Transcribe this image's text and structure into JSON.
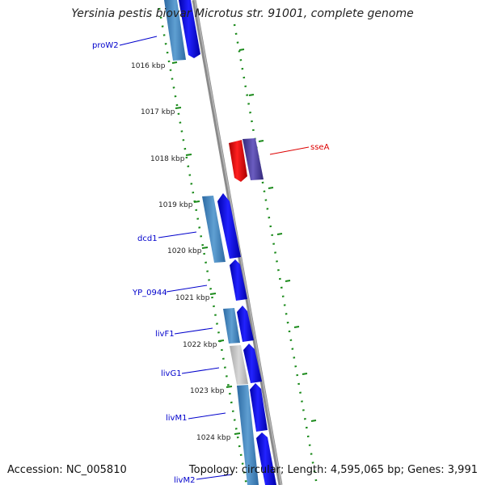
{
  "title": "Yersinia pestis biovar Microtus str. 91001, complete genome",
  "accession": "Accession: NC_005810",
  "summary": "Topology: circular; Length: 4,595,065 bp; Genes: 3,991",
  "kbp_ticks": [
    {
      "label": "1016 kbp",
      "position_kbp": 1016
    },
    {
      "label": "1017 kbp",
      "position_kbp": 1017
    },
    {
      "label": "1018 kbp",
      "position_kbp": 1018
    },
    {
      "label": "1019 kbp",
      "position_kbp": 1019
    },
    {
      "label": "1020 kbp",
      "position_kbp": 1020
    },
    {
      "label": "1021 kbp",
      "position_kbp": 1021
    },
    {
      "label": "1022 kbp",
      "position_kbp": 1022
    },
    {
      "label": "1023 kbp",
      "position_kbp": 1023
    },
    {
      "label": "1024 kbp",
      "position_kbp": 1024
    }
  ],
  "gene_labels": [
    {
      "name": "proW2",
      "side": "left",
      "color": "#0000cc"
    },
    {
      "name": "sseA",
      "side": "right",
      "color": "#dd0000"
    },
    {
      "name": "dcd1",
      "side": "left",
      "color": "#0000cc"
    },
    {
      "name": "YP_0944",
      "side": "left",
      "color": "#0000cc"
    },
    {
      "name": "livF1",
      "side": "left",
      "color": "#0000cc"
    },
    {
      "name": "livG1",
      "side": "left",
      "color": "#0000cc"
    },
    {
      "name": "livM1",
      "side": "left",
      "color": "#0000cc"
    },
    {
      "name": "livM2",
      "side": "left",
      "color": "#0000cc"
    }
  ],
  "colors": {
    "cds_forward": "#0000ee",
    "cds_reverse": "#dd0000",
    "gene_strip_blue": "#3f7fb8",
    "gene_strip_grey": "#c0c0c0",
    "gene_strip_purple": "#4a3c99",
    "backbone": "#8a8a8a",
    "tick_green": "#1a8a1a"
  }
}
